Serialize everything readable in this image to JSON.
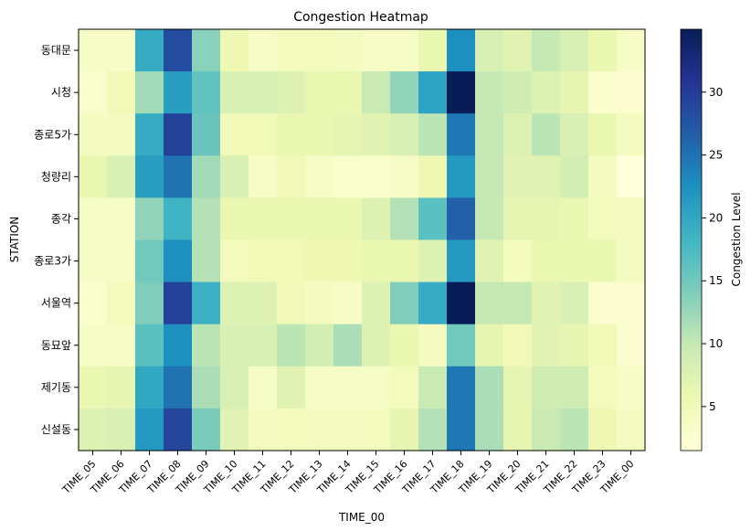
{
  "chart_data": {
    "type": "heatmap",
    "title": "Congestion Heatmap",
    "xlabel": "TIME_00",
    "ylabel": "STATION",
    "colorbar_label": "Congestion Level",
    "colorbar_ticks": [
      5,
      10,
      15,
      20,
      25,
      30
    ],
    "value_range": [
      1.5,
      35
    ],
    "colormap": "YlGnBu",
    "x": [
      "TIME_05",
      "TIME_06",
      "TIME_07",
      "TIME_08",
      "TIME_09",
      "TIME_10",
      "TIME_11",
      "TIME_12",
      "TIME_13",
      "TIME_14",
      "TIME_15",
      "TIME_16",
      "TIME_17",
      "TIME_18",
      "TIME_19",
      "TIME_20",
      "TIME_21",
      "TIME_22",
      "TIME_23",
      "TIME_00"
    ],
    "y": [
      "동대문",
      "시청",
      "종로5가",
      "청량리",
      "종각",
      "종로3가",
      "서울역",
      "동묘앞",
      "제기동",
      "신설동"
    ],
    "values": [
      [
        3.5,
        3.5,
        19.5,
        28.5,
        13.5,
        5.5,
        3.5,
        4.5,
        4.5,
        4,
        3.5,
        3.5,
        6,
        22.5,
        8,
        7,
        10,
        8,
        6,
        3.5
      ],
      [
        3,
        5,
        12,
        21,
        16,
        8,
        8,
        7.5,
        6,
        6,
        9.5,
        13,
        20.5,
        35,
        10,
        9,
        7.5,
        6.5,
        3,
        2.5
      ],
      [
        4,
        4,
        19.5,
        29.5,
        15.5,
        5,
        5,
        6,
        6,
        6.5,
        7,
        8,
        10.5,
        24.5,
        10,
        7.5,
        10.5,
        8,
        6,
        4
      ],
      [
        6,
        8,
        21,
        25,
        12,
        8,
        3.5,
        5,
        3.5,
        3,
        3,
        3.5,
        5.5,
        21.5,
        10,
        7,
        7,
        8.5,
        4,
        1.5
      ],
      [
        3.5,
        3.5,
        13,
        18.5,
        11,
        6,
        6,
        6,
        6,
        6,
        7.5,
        11,
        16.5,
        26.5,
        10,
        6.5,
        6.5,
        6,
        4.5,
        4
      ],
      [
        3.5,
        3.5,
        15,
        22.5,
        11,
        4.5,
        5,
        5,
        5.5,
        5.5,
        6,
        6,
        7.5,
        21.5,
        7,
        4.5,
        6,
        6,
        6,
        4
      ],
      [
        3,
        4.5,
        14,
        29.5,
        19,
        7.5,
        7.5,
        5,
        4,
        3.5,
        7.5,
        14,
        19.5,
        35,
        10,
        10,
        7,
        8,
        2.5,
        2.5
      ],
      [
        3.5,
        3.5,
        16.5,
        22.5,
        10.5,
        8,
        8,
        10.5,
        8.5,
        11.5,
        7.5,
        6,
        4,
        15,
        6.5,
        5,
        7,
        6.5,
        5,
        2.5
      ],
      [
        6,
        6.5,
        20,
        25,
        11.5,
        8,
        3.5,
        7,
        3.5,
        3.5,
        3.5,
        4.5,
        9.5,
        24.5,
        11.5,
        6.5,
        9,
        9,
        4.5,
        3.5
      ],
      [
        7.5,
        8,
        21.5,
        29,
        14.5,
        7,
        4,
        4.5,
        4,
        4,
        4.5,
        6.5,
        11,
        24.5,
        11.5,
        6.5,
        9.5,
        10.5,
        5.5,
        4
      ]
    ]
  }
}
